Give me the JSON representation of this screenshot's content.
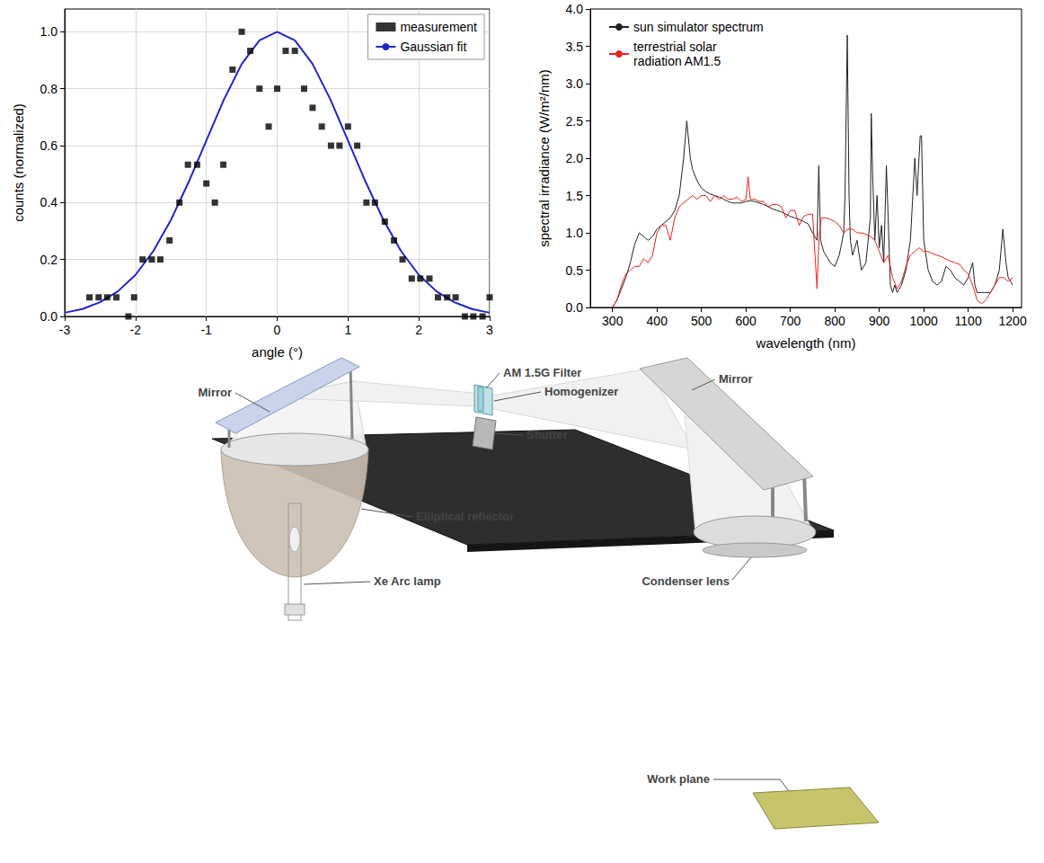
{
  "chart_data": [
    {
      "type": "scatter",
      "x_label": "angle (°)",
      "y_label": "counts (normalized)",
      "xlim": [
        -3,
        3
      ],
      "xticks": [
        -3,
        -2,
        -1,
        0,
        1,
        2,
        3
      ],
      "ylim": [
        0,
        1.08
      ],
      "yticks": [
        {
          "value": 0,
          "label": "0.0"
        },
        {
          "value": 0.2,
          "label": "0.2"
        },
        {
          "value": 0.4,
          "label": "0.4"
        },
        {
          "value": 0.6,
          "label": "0.6"
        },
        {
          "value": 0.8,
          "label": "0.8"
        },
        {
          "value": 1.0,
          "label": "1.0"
        }
      ],
      "grid": true,
      "legend": "upper right",
      "series": [
        {
          "name": "measurement",
          "type": "scatter",
          "marker": "square",
          "color": "#000000",
          "x": [
            -2.65,
            -2.52,
            -2.4,
            -2.27,
            -2.1,
            -2.02,
            -1.9,
            -1.77,
            -1.65,
            -1.52,
            -1.38,
            -1.26,
            -1.13,
            -1.0,
            -0.88,
            -0.76,
            -0.63,
            -0.5,
            -0.38,
            -0.25,
            -0.12,
            0.0,
            0.12,
            0.25,
            0.38,
            0.5,
            0.63,
            0.76,
            0.88,
            1.0,
            1.13,
            1.26,
            1.38,
            1.52,
            1.65,
            1.77,
            1.9,
            2.02,
            2.15,
            2.27,
            2.4,
            2.52,
            2.65,
            2.77,
            2.9,
            3.0
          ],
          "values": [
            0.067,
            0.067,
            0.067,
            0.067,
            0.0,
            0.067,
            0.2,
            0.2,
            0.2,
            0.267,
            0.4,
            0.533,
            0.533,
            0.467,
            0.4,
            0.533,
            0.867,
            1.0,
            0.933,
            0.8,
            0.667,
            0.8,
            0.933,
            0.933,
            0.8,
            0.733,
            0.667,
            0.6,
            0.6,
            0.667,
            0.6,
            0.4,
            0.4,
            0.333,
            0.267,
            0.2,
            0.133,
            0.133,
            0.133,
            0.067,
            0.067,
            0.067,
            0.0,
            0.0,
            0.0,
            0.067
          ]
        },
        {
          "name": "Gaussian fit",
          "type": "line",
          "marker": "none",
          "line_style": "solid",
          "color": "#2323c8",
          "x": [
            -3,
            -2.75,
            -2.5,
            -2.25,
            -2,
            -1.75,
            -1.5,
            -1.25,
            -1,
            -0.75,
            -0.5,
            -0.25,
            0,
            0.25,
            0.5,
            0.75,
            1,
            1.25,
            1.5,
            1.75,
            2,
            2.25,
            2.5,
            2.75,
            3
          ],
          "values": [
            0.013,
            0.026,
            0.05,
            0.088,
            0.146,
            0.229,
            0.339,
            0.472,
            0.618,
            0.763,
            0.887,
            0.97,
            1.0,
            0.97,
            0.887,
            0.763,
            0.618,
            0.472,
            0.339,
            0.229,
            0.146,
            0.088,
            0.05,
            0.026,
            0.013
          ]
        }
      ]
    },
    {
      "type": "line",
      "x_label": "wavelength (nm)",
      "y_label": "spectral irradiance (W/m²/nm)",
      "xlim": [
        250,
        1220
      ],
      "xticks": [
        300,
        400,
        500,
        600,
        700,
        800,
        900,
        1000,
        1100,
        1200
      ],
      "ylim": [
        0,
        4
      ],
      "yticks": [
        {
          "value": 0,
          "label": "0.0"
        },
        {
          "value": 0.5,
          "label": "0.5"
        },
        {
          "value": 1,
          "label": "1.0"
        },
        {
          "value": 1.5,
          "label": "1.5"
        },
        {
          "value": 2,
          "label": "2.0"
        },
        {
          "value": 2.5,
          "label": "2.5"
        },
        {
          "value": 3,
          "label": "3.0"
        },
        {
          "value": 3.5,
          "label": "3.5"
        },
        {
          "value": 4,
          "label": "4.0"
        }
      ],
      "grid": false,
      "legend": "upper left",
      "series": [
        {
          "name": "sun simulator spectrum",
          "color": "#222222",
          "marker": "none",
          "line_style": "solid",
          "x": [
            300,
            310,
            320,
            330,
            340,
            350,
            360,
            370,
            380,
            390,
            400,
            410,
            420,
            430,
            440,
            450,
            460,
            467,
            475,
            480,
            490,
            500,
            510,
            520,
            530,
            540,
            550,
            560,
            570,
            580,
            590,
            600,
            610,
            620,
            630,
            640,
            650,
            660,
            670,
            680,
            690,
            700,
            710,
            720,
            730,
            740,
            750,
            760,
            764,
            768,
            775,
            790,
            800,
            810,
            820,
            823,
            828,
            832,
            835,
            840,
            850,
            860,
            870,
            880,
            882,
            885,
            890,
            895,
            900,
            905,
            910,
            916,
            920,
            925,
            930,
            935,
            940,
            950,
            960,
            970,
            980,
            985,
            992,
            995,
            1000,
            1010,
            1020,
            1030,
            1040,
            1050,
            1060,
            1070,
            1080,
            1090,
            1100,
            1110,
            1115,
            1120,
            1130,
            1140,
            1150,
            1160,
            1170,
            1178,
            1185,
            1190,
            1200
          ],
          "values": [
            0,
            0.1,
            0.25,
            0.4,
            0.6,
            0.85,
            1.0,
            0.95,
            0.9,
            0.95,
            1.05,
            1.1,
            1.15,
            1.2,
            1.3,
            1.5,
            2.0,
            2.5,
            2.0,
            1.85,
            1.7,
            1.6,
            1.55,
            1.52,
            1.5,
            1.48,
            1.45,
            1.42,
            1.4,
            1.4,
            1.4,
            1.42,
            1.43,
            1.42,
            1.4,
            1.38,
            1.35,
            1.32,
            1.3,
            1.28,
            1.25,
            1.22,
            1.2,
            1.18,
            1.15,
            1.12,
            1.0,
            0.9,
            1.9,
            0.9,
            0.75,
            0.6,
            0.55,
            0.7,
            1.0,
            1.5,
            3.65,
            1.5,
            0.9,
            0.7,
            0.9,
            0.5,
            0.6,
            1.2,
            2.6,
            1.8,
            0.9,
            1.5,
            0.8,
            1.1,
            0.6,
            1.9,
            1.2,
            0.3,
            0.2,
            0.3,
            0.2,
            0.3,
            0.5,
            0.9,
            2.0,
            1.5,
            2.3,
            2.3,
            0.9,
            0.5,
            0.35,
            0.3,
            0.35,
            0.55,
            0.5,
            0.4,
            0.35,
            0.3,
            0.4,
            0.6,
            0.3,
            0.2,
            0.2,
            0.2,
            0.2,
            0.3,
            0.5,
            1.05,
            0.6,
            0.4,
            0.3
          ]
        },
        {
          "name": "terrestrial solar radiation AM1.5",
          "color": "#e8231f",
          "marker": "none",
          "line_style": "solid",
          "x": [
            300,
            310,
            320,
            330,
            340,
            350,
            360,
            370,
            380,
            390,
            400,
            410,
            420,
            430,
            440,
            450,
            460,
            470,
            480,
            490,
            500,
            510,
            520,
            530,
            540,
            550,
            560,
            570,
            580,
            590,
            600,
            605,
            610,
            620,
            630,
            640,
            650,
            660,
            670,
            680,
            690,
            700,
            710,
            720,
            730,
            740,
            750,
            760,
            765,
            770,
            780,
            790,
            800,
            810,
            820,
            830,
            840,
            850,
            860,
            870,
            880,
            890,
            900,
            910,
            920,
            930,
            940,
            950,
            960,
            970,
            980,
            990,
            1000,
            1010,
            1020,
            1030,
            1040,
            1050,
            1060,
            1070,
            1080,
            1090,
            1100,
            1110,
            1120,
            1130,
            1140,
            1150,
            1160,
            1170,
            1180,
            1190,
            1200
          ],
          "values": [
            0,
            0.1,
            0.3,
            0.45,
            0.5,
            0.55,
            0.55,
            0.65,
            0.6,
            0.7,
            1.0,
            1.1,
            1.1,
            0.9,
            1.2,
            1.35,
            1.4,
            1.45,
            1.5,
            1.45,
            1.5,
            1.5,
            1.42,
            1.5,
            1.45,
            1.5,
            1.45,
            1.45,
            1.48,
            1.42,
            1.45,
            1.75,
            1.45,
            1.45,
            1.42,
            1.42,
            1.35,
            1.38,
            1.38,
            1.35,
            1.2,
            1.3,
            1.3,
            1.1,
            1.22,
            1.25,
            1.25,
            0.25,
            1.0,
            1.2,
            1.2,
            1.18,
            1.15,
            1.1,
            1.0,
            1.05,
            1.05,
            1.0,
            1.0,
            0.98,
            0.95,
            0.9,
            0.75,
            0.6,
            0.7,
            0.4,
            0.25,
            0.35,
            0.55,
            0.7,
            0.75,
            0.8,
            0.75,
            0.75,
            0.72,
            0.7,
            0.68,
            0.65,
            0.62,
            0.6,
            0.58,
            0.5,
            0.45,
            0.3,
            0.1,
            0.05,
            0.1,
            0.2,
            0.3,
            0.4,
            0.4,
            0.35,
            0.4
          ]
        }
      ]
    }
  ],
  "diagram": {
    "components": [
      {
        "label": "Mirror"
      },
      {
        "label": "AM 1.5G Filter"
      },
      {
        "label": "Homogenizer"
      },
      {
        "label": "Mirror"
      },
      {
        "label": "Shutter"
      },
      {
        "label": "Elliptical reflector"
      },
      {
        "label": "Xe Arc lamp"
      },
      {
        "label": "Condenser lens"
      },
      {
        "label": "Work plane"
      }
    ]
  }
}
